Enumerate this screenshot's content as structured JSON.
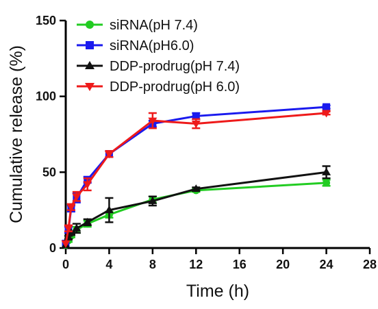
{
  "chart_data": {
    "type": "line",
    "xlabel": "Time (h)",
    "ylabel": "Cumulative release (%)",
    "xlim": [
      0,
      28
    ],
    "ylim": [
      0,
      150
    ],
    "xticks": [
      0,
      4,
      8,
      12,
      16,
      20,
      24,
      28
    ],
    "yticks": [
      0,
      50,
      100,
      150
    ],
    "legend_position": "top-left",
    "x": [
      0,
      0.25,
      0.5,
      1,
      2,
      4,
      8,
      12,
      24
    ],
    "series": [
      {
        "name": "siRNA(pH 7.4)",
        "color": "#22cc22",
        "marker": "circle",
        "values": [
          2,
          5,
          8,
          12,
          16,
          22,
          32,
          38,
          43
        ],
        "errors": [
          0,
          1,
          1,
          2,
          2,
          2,
          2,
          1,
          2
        ]
      },
      {
        "name": "siRNA(pH6.0)",
        "color": "#1a1aee",
        "marker": "square",
        "values": [
          3,
          12,
          26,
          33,
          45,
          62,
          82,
          87,
          93
        ],
        "errors": [
          0,
          2,
          2,
          3,
          2,
          2,
          2,
          2,
          1
        ]
      },
      {
        "name": "DDP-prodrug(pH 7.4)",
        "color": "#111111",
        "marker": "triangle-up",
        "values": [
          2,
          7,
          10,
          13,
          17,
          25,
          31,
          39,
          50
        ],
        "errors": [
          0,
          1,
          1,
          3,
          2,
          8,
          3,
          1,
          4
        ]
      },
      {
        "name": "DDP-prodrug(pH 6.0)",
        "color": "#ee1a1a",
        "marker": "triangle-down",
        "values": [
          3,
          13,
          27,
          34,
          42,
          62,
          84,
          82,
          89
        ],
        "errors": [
          0,
          2,
          2,
          3,
          4,
          2,
          5,
          3,
          1
        ]
      }
    ]
  }
}
